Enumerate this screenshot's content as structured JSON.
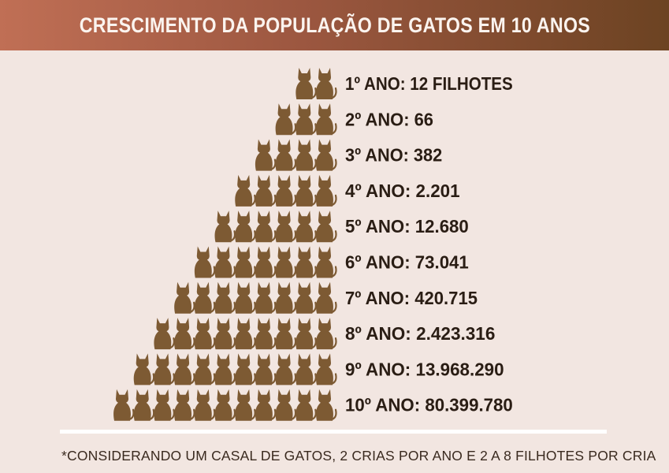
{
  "header": {
    "title": "CRESCIMENTO DA POPULAÇÃO DE GATOS EM 10 ANOS"
  },
  "chart_data": {
    "type": "pictograph",
    "title": "CRESCIMENTO DA POPULAÇÃO DE GATOS EM 10 ANOS",
    "rows": [
      {
        "label": "1º ANO: 12 FILHOTES",
        "value": 12,
        "icons": 2
      },
      {
        "label": "2º ANO: 66",
        "value": 66,
        "icons": 3
      },
      {
        "label": "3º ANO: 382",
        "value": 382,
        "icons": 4
      },
      {
        "label": "4º ANO: 2.201",
        "value": 2201,
        "icons": 5
      },
      {
        "label": "5º ANO: 12.680",
        "value": 12680,
        "icons": 6
      },
      {
        "label": "6º ANO: 73.041",
        "value": 73041,
        "icons": 7
      },
      {
        "label": "7º ANO: 420.715",
        "value": 420715,
        "icons": 8
      },
      {
        "label": "8º ANO: 2.423.316",
        "value": 2423316,
        "icons": 9
      },
      {
        "label": "9º ANO: 13.968.290",
        "value": 13968290,
        "icons": 10
      },
      {
        "label": "10º ANO: 80.399.780",
        "value": 80399780,
        "icons": 11
      }
    ],
    "icon": "cat-icon",
    "icon_color": "#7d5a33"
  },
  "footnote": "*CONSIDERANDO UM CASAL DE GATOS, 2 CRIAS POR ANO E 2 A 8 FILHOTES POR CRIA",
  "colors": {
    "banner_start": "#c06f55",
    "banner_end": "#6c4322",
    "background": "#f2e6e1",
    "cat": "#7d5a33"
  }
}
